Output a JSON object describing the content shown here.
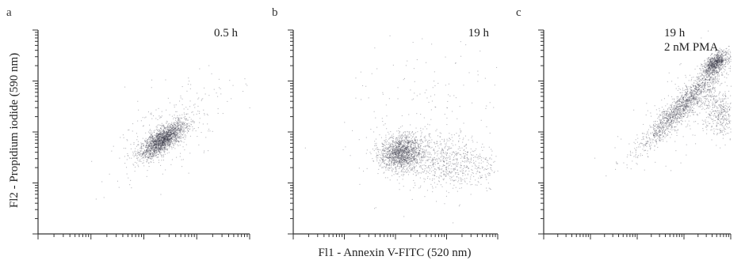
{
  "figure": {
    "xlabel": "Fl1 - Annexin V-FITC (520 nm)",
    "ylabel": "Fl2 - Propidium iodide (590 nm)"
  },
  "chart_data": [
    {
      "type": "scatter",
      "panel": "a",
      "labels": [
        "0.5 h"
      ],
      "xscale": "log",
      "yscale": "log",
      "xlim": [
        1,
        10000
      ],
      "ylim": [
        1,
        10000
      ],
      "clusters": [
        {
          "cx": 2.35,
          "cy": 1.85,
          "sx": 0.22,
          "sy": 0.18,
          "rho": 0.75,
          "n": 1900
        },
        {
          "cx": 2.5,
          "cy": 2.1,
          "sx": 0.55,
          "sy": 0.55,
          "rho": 0.6,
          "n": 260
        }
      ]
    },
    {
      "type": "scatter",
      "panel": "b",
      "labels": [
        "19 h"
      ],
      "xscale": "log",
      "yscale": "log",
      "xlim": [
        1,
        10000
      ],
      "ylim": [
        1,
        10000
      ],
      "clusters": [
        {
          "cx": 2.1,
          "cy": 1.6,
          "sx": 0.2,
          "sy": 0.17,
          "rho": 0.1,
          "n": 1400
        },
        {
          "cx": 2.9,
          "cy": 1.45,
          "sx": 0.55,
          "sy": 0.28,
          "rho": -0.2,
          "n": 900
        },
        {
          "cx": 2.8,
          "cy": 2.4,
          "sx": 0.9,
          "sy": 0.8,
          "rho": 0.0,
          "n": 160
        }
      ]
    },
    {
      "type": "scatter",
      "panel": "c",
      "labels": [
        "19 h",
        "2 nM PMA"
      ],
      "xscale": "log",
      "yscale": "log",
      "xlim": [
        1,
        10000
      ],
      "ylim": [
        1,
        10000
      ],
      "clusters": [
        {
          "cx": 3.65,
          "cy": 3.35,
          "sx": 0.13,
          "sy": 0.11,
          "rho": 0.6,
          "n": 750
        },
        {
          "cx": 3.0,
          "cy": 2.55,
          "sx": 0.48,
          "sy": 0.45,
          "rho": 0.95,
          "n": 1600
        },
        {
          "cx": 3.75,
          "cy": 2.4,
          "sx": 0.2,
          "sy": 0.25,
          "rho": -0.2,
          "n": 450
        },
        {
          "cx": 3.2,
          "cy": 2.7,
          "sx": 0.7,
          "sy": 0.65,
          "rho": 0.7,
          "n": 250
        }
      ]
    }
  ]
}
